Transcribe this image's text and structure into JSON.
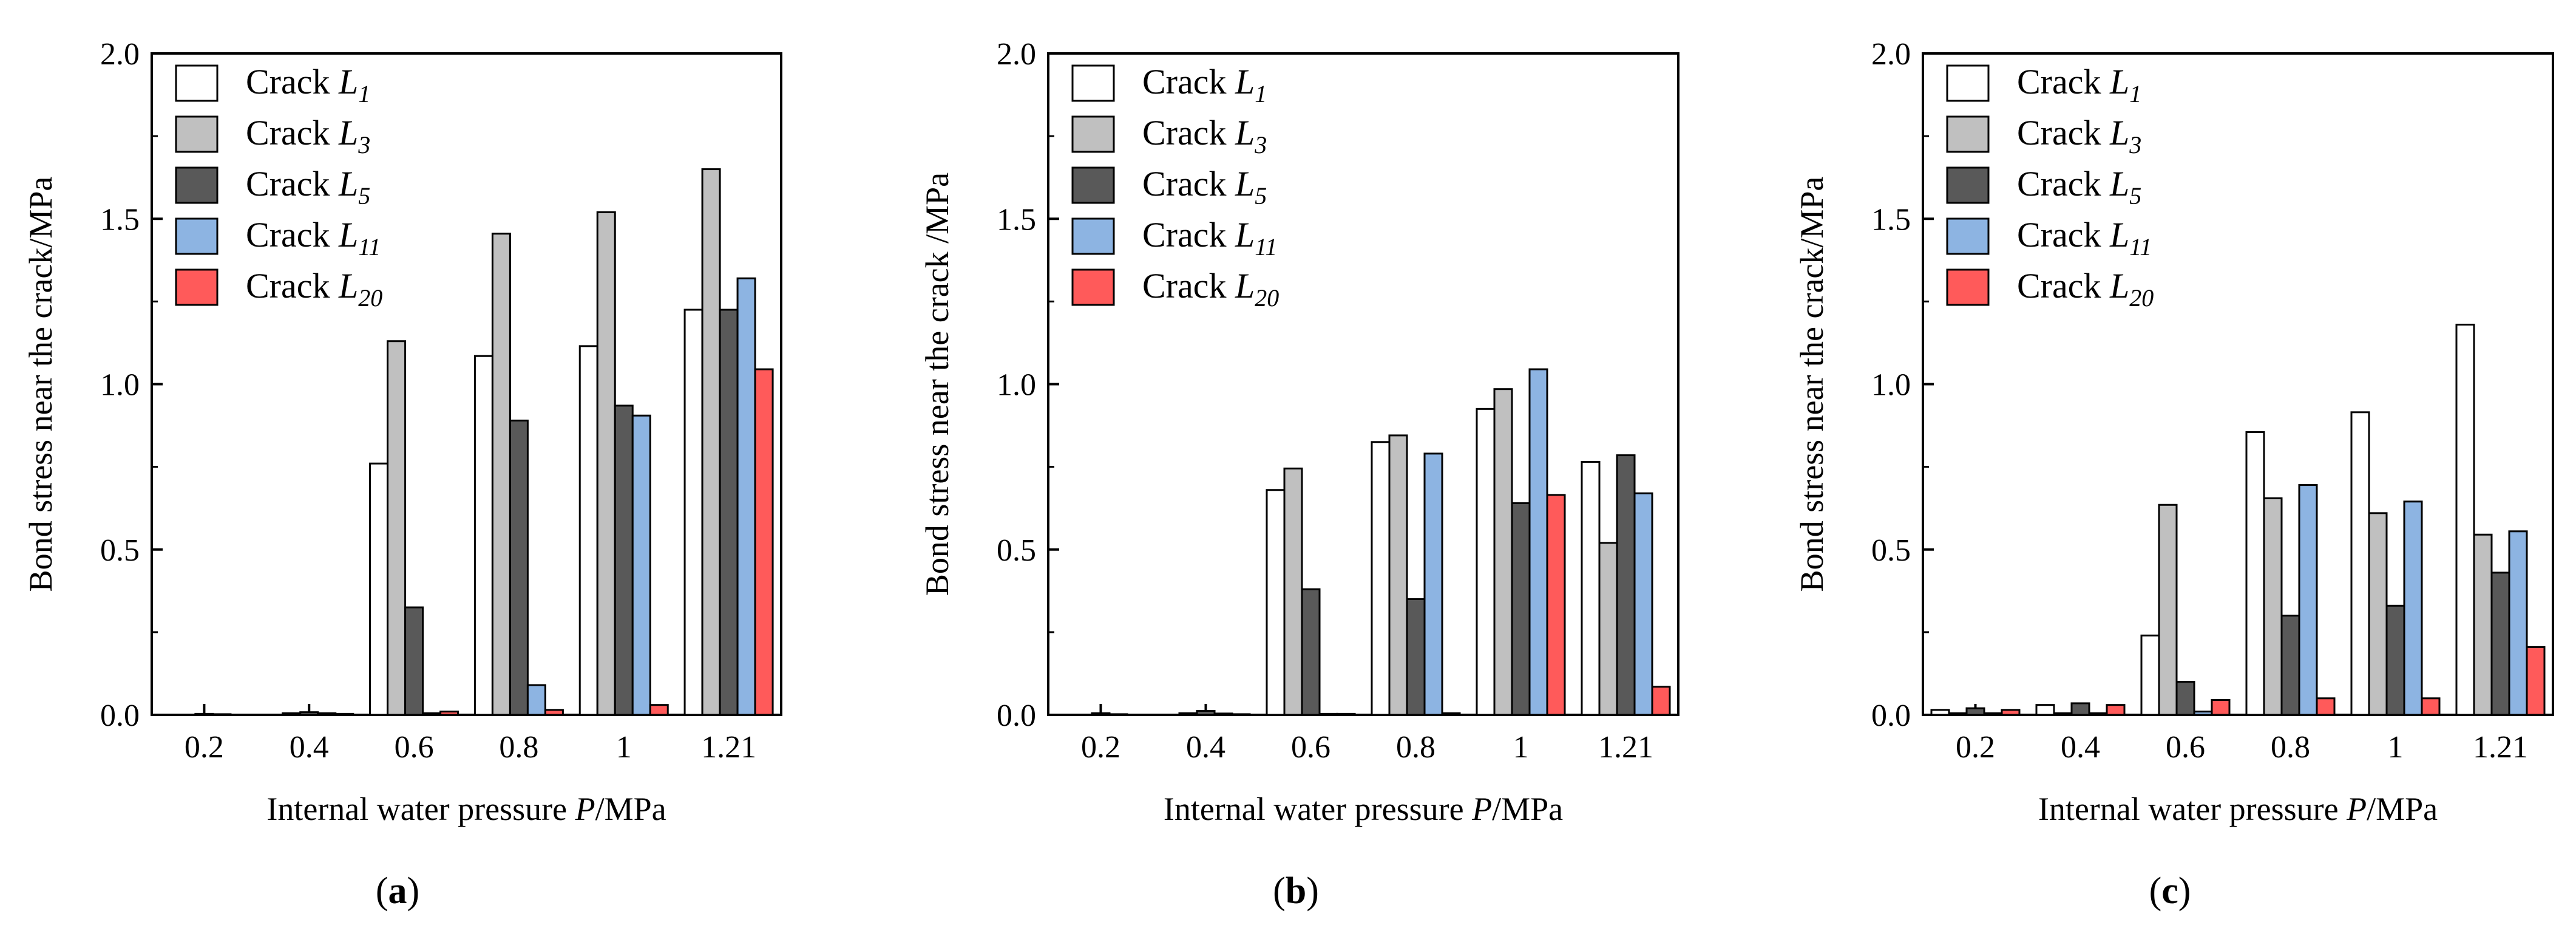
{
  "figure": {
    "panel_labels": [
      "(a)",
      "(b)",
      "(c)"
    ],
    "legend_prefix": "Crack",
    "legend_items": [
      {
        "name": "L",
        "sub": "1"
      },
      {
        "name": "L",
        "sub": "3"
      },
      {
        "name": "L",
        "sub": "5"
      },
      {
        "name": "L",
        "sub": "11"
      },
      {
        "name": "L",
        "sub": "20"
      }
    ],
    "colors": {
      "L1": "#ffffff",
      "L3": "#c0c0c0",
      "L5": "#595959",
      "L11": "#8db4e2",
      "L20": "#ff5a5a",
      "stroke": "#000000"
    }
  },
  "chart_data": [
    {
      "type": "bar",
      "label": "(a)",
      "title": "",
      "xlabel": "Internal water pressure  P/MPa",
      "ylabel": "Bond stress near the crack/MPa",
      "categories": [
        "0.2",
        "0.4",
        "0.6",
        "0.8",
        "1",
        "1.21"
      ],
      "ylim": [
        0,
        2.0
      ],
      "yticks": [
        "0.0",
        "0.5",
        "1.0",
        "1.5",
        "2.0"
      ],
      "series": [
        {
          "name": "Crack L1",
          "values": [
            0.0,
            0.0,
            0.76,
            1.085,
            1.115,
            1.225
          ]
        },
        {
          "name": "Crack L3",
          "values": [
            0.0,
            0.005,
            1.13,
            1.455,
            1.52,
            1.65
          ]
        },
        {
          "name": "Crack L5",
          "values": [
            0.003,
            0.008,
            0.325,
            0.89,
            0.935,
            1.225
          ]
        },
        {
          "name": "Crack L11",
          "values": [
            0.002,
            0.005,
            0.005,
            0.09,
            0.905,
            1.32
          ]
        },
        {
          "name": "Crack L20",
          "values": [
            0.0,
            0.003,
            0.01,
            0.015,
            0.03,
            1.045
          ]
        }
      ]
    },
    {
      "type": "bar",
      "label": "(b)",
      "title": "",
      "xlabel": "Internal water pressure P/MPa",
      "ylabel": "Bond stress near the crack /MPa",
      "categories": [
        "0.2",
        "0.4",
        "0.6",
        "0.8",
        "1",
        "1.21"
      ],
      "ylim": [
        0,
        2.0
      ],
      "yticks": [
        "0.0",
        "0.5",
        "1.0",
        "1.5",
        "2.0"
      ],
      "series": [
        {
          "name": "Crack L1",
          "values": [
            0.0,
            0.0,
            0.68,
            0.825,
            0.925,
            0.765
          ]
        },
        {
          "name": "Crack L3",
          "values": [
            0.0,
            0.005,
            0.745,
            0.845,
            0.985,
            0.52
          ]
        },
        {
          "name": "Crack L5",
          "values": [
            0.005,
            0.012,
            0.38,
            0.35,
            0.64,
            0.785
          ]
        },
        {
          "name": "Crack L11",
          "values": [
            0.002,
            0.004,
            0.003,
            0.79,
            1.045,
            0.67
          ]
        },
        {
          "name": "Crack L20",
          "values": [
            0.0,
            0.002,
            0.003,
            0.005,
            0.665,
            0.085
          ]
        }
      ]
    },
    {
      "type": "bar",
      "label": "(c)",
      "title": "",
      "xlabel": "Internal water pressure P/MPa",
      "ylabel": "Bond stress near the crack/MPa",
      "categories": [
        "0.2",
        "0.4",
        "0.6",
        "0.8",
        "1",
        "1.21"
      ],
      "ylim": [
        0,
        2.0
      ],
      "yticks": [
        "0.0",
        "0.5",
        "1.0",
        "1.5",
        "2.0"
      ],
      "series": [
        {
          "name": "Crack L1",
          "values": [
            0.015,
            0.03,
            0.24,
            0.855,
            0.915,
            1.18
          ]
        },
        {
          "name": "Crack L3",
          "values": [
            0.005,
            0.005,
            0.635,
            0.655,
            0.61,
            0.545
          ]
        },
        {
          "name": "Crack L5",
          "values": [
            0.02,
            0.035,
            0.1,
            0.3,
            0.33,
            0.43
          ]
        },
        {
          "name": "Crack L11",
          "values": [
            0.005,
            0.005,
            0.01,
            0.695,
            0.645,
            0.555
          ]
        },
        {
          "name": "Crack L20",
          "values": [
            0.015,
            0.03,
            0.045,
            0.05,
            0.05,
            0.205
          ]
        }
      ]
    }
  ]
}
